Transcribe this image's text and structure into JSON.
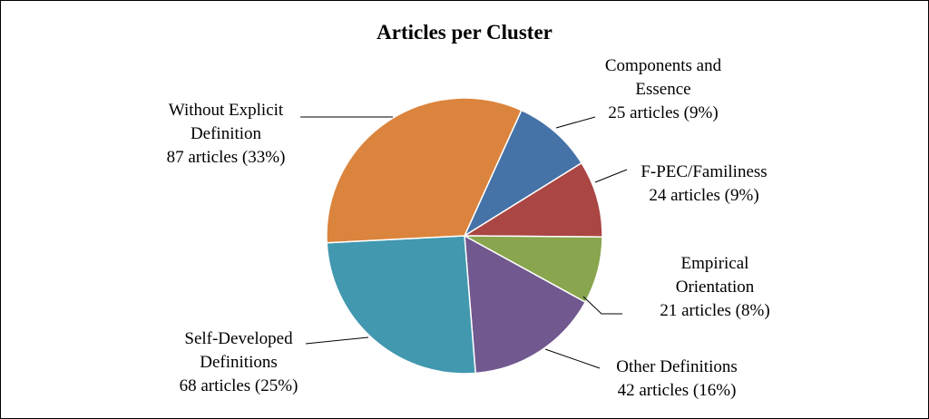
{
  "chart_data": {
    "type": "pie",
    "title": "Articles per Cluster",
    "categories": [
      "Components and\nEssence",
      "F-PEC/Familiness",
      "Empirical\nOrientation",
      "Other Definitions",
      "Self-Developed\nDefinitions",
      "Without Explicit\nDefinition"
    ],
    "values": [
      25,
      24,
      21,
      42,
      68,
      87
    ],
    "value_labels": [
      "25 articles (9%)",
      "24 articles (9%)",
      "21 articles (8%)",
      "42 articles (16%)",
      "68 articles (25%)",
      "87 articles (33%)"
    ],
    "colors": [
      "#4572a7",
      "#aa4643",
      "#89a54e",
      "#71588f",
      "#4198af",
      "#db843d"
    ]
  }
}
